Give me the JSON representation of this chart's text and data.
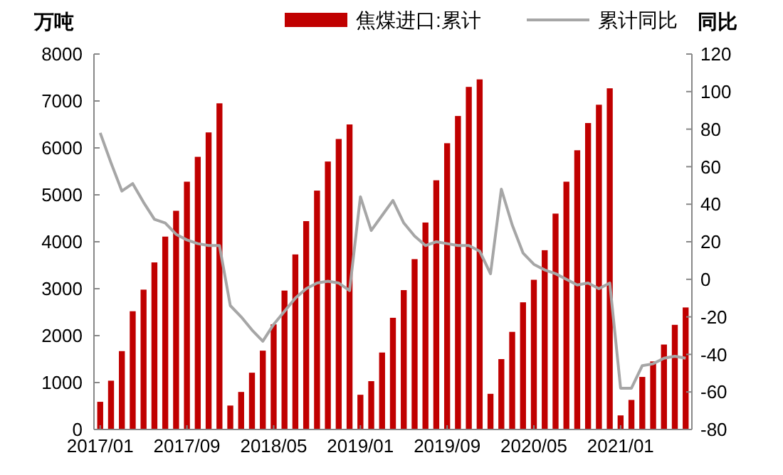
{
  "chart_data": {
    "type": "bar",
    "categories": [
      "2017/01",
      null,
      null,
      null,
      null,
      null,
      null,
      null,
      "2017/09",
      null,
      null,
      null,
      null,
      null,
      null,
      null,
      "2018/05",
      null,
      null,
      null,
      null,
      null,
      null,
      null,
      "2019/01",
      null,
      null,
      null,
      null,
      null,
      null,
      null,
      "2019/09",
      null,
      null,
      null,
      null,
      null,
      null,
      null,
      "2020/05",
      null,
      null,
      null,
      null,
      null,
      null,
      null,
      "2021/01",
      null,
      null,
      null,
      null,
      null,
      null
    ],
    "series": [
      {
        "name": "焦煤进口:累计",
        "color": "#c00000",
        "values": [
          590,
          1040,
          1670,
          2520,
          2980,
          3560,
          4110,
          4660,
          5280,
          5810,
          6330,
          6950,
          510,
          800,
          1210,
          1680,
          2240,
          2960,
          3730,
          4440,
          5090,
          5710,
          6190,
          6500,
          740,
          1030,
          1640,
          2380,
          2970,
          3630,
          4410,
          5310,
          6100,
          6680,
          7300,
          7460,
          760,
          1500,
          2080,
          2710,
          3190,
          3820,
          4600,
          5280,
          5950,
          6530,
          6920,
          7270,
          300,
          630,
          1120,
          1450,
          1810,
          2230,
          2600
        ]
      },
      {
        "name": "累计同比",
        "type": "line",
        "axis": "y2",
        "color": "#a6a6a6",
        "values": [
          78,
          62,
          47,
          51,
          41,
          32,
          30,
          24,
          21,
          19,
          18,
          18,
          -14,
          -20,
          -27,
          -33,
          -24,
          -17,
          -10,
          -5,
          -2,
          -1,
          -2,
          -6,
          44,
          26,
          34,
          42,
          30,
          23,
          18,
          20,
          19,
          18,
          18,
          15,
          3,
          48,
          29,
          14,
          8,
          5,
          3,
          0,
          -3,
          -2,
          -5,
          -2,
          -58,
          -58,
          -46,
          -45,
          -42,
          -41,
          -42
        ]
      }
    ],
    "ylabel": "万吨",
    "y2label": "同比",
    "ylim": [
      0,
      8000
    ],
    "yticks": [
      0,
      1000,
      2000,
      3000,
      4000,
      5000,
      6000,
      7000,
      8000
    ],
    "y2lim": [
      -80,
      120
    ],
    "y2ticks": [
      -80,
      -60,
      -40,
      -20,
      0,
      20,
      40,
      60,
      80,
      100,
      120
    ],
    "legend": "top",
    "grid": false,
    "marker": "none",
    "line_style": "solid"
  }
}
